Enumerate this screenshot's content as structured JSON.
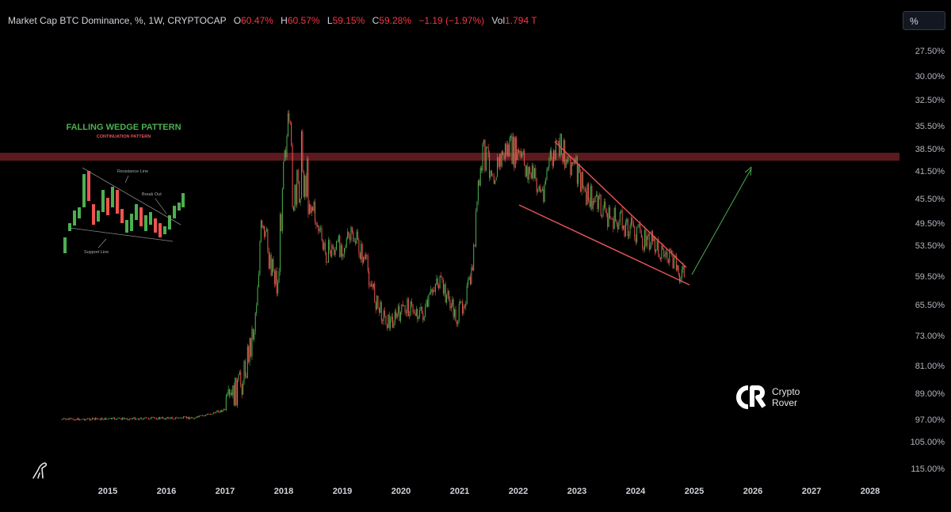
{
  "legend": {
    "symbol": "Market Cap BTC Dominance, %, 1W, CRYPTOCAP",
    "open_label": "O",
    "open": "60.47%",
    "high_label": "H",
    "high": "60.57%",
    "low_label": "L",
    "low": "59.15%",
    "close_label": "C",
    "close": "59.28%",
    "change": "−1.19 (−1.97%)",
    "vol_label": "Vol",
    "vol": "1.794 T"
  },
  "scale_button": "%",
  "brand": {
    "line1": "Crypto",
    "line2": "Rover"
  },
  "colors": {
    "up": "#4caf50",
    "down": "#ef5350",
    "band": "#5c1a1e",
    "accent": "#f23645"
  },
  "chart_data": {
    "type": "candlestick",
    "title": "Market Cap BTC Dominance, %, 1W, CRYPTOCAP",
    "x_axis": {
      "ticks": [
        "2015",
        "2016",
        "2017",
        "2018",
        "2019",
        "2020",
        "2021",
        "2022",
        "2023",
        "2024",
        "2025",
        "2026",
        "2027",
        "2028"
      ]
    },
    "y_axis": {
      "side": "right",
      "inverted": true,
      "ticks": [
        "27.50%",
        "30.00%",
        "32.50%",
        "35.50%",
        "38.50%",
        "41.50%",
        "45.50%",
        "49.50%",
        "53.50%",
        "59.50%",
        "65.50%",
        "73.00%",
        "81.00%",
        "89.00%",
        "97.00%",
        "105.00%",
        "115.00%"
      ]
    },
    "series_path": [
      {
        "t": 2014.3,
        "v": 97.0
      },
      {
        "t": 2016.5,
        "v": 96.5
      },
      {
        "t": 2017.0,
        "v": 94.0
      },
      {
        "t": 2017.3,
        "v": 85.0
      },
      {
        "t": 2017.5,
        "v": 70.0
      },
      {
        "t": 2017.6,
        "v": 52.0
      },
      {
        "t": 2017.8,
        "v": 56.0
      },
      {
        "t": 2017.9,
        "v": 62.0
      },
      {
        "t": 2018.0,
        "v": 35.5
      },
      {
        "t": 2018.1,
        "v": 38.5
      },
      {
        "t": 2018.2,
        "v": 48.0
      },
      {
        "t": 2018.3,
        "v": 40.0
      },
      {
        "t": 2018.5,
        "v": 47.0
      },
      {
        "t": 2018.7,
        "v": 55.0
      },
      {
        "t": 2019.0,
        "v": 53.5
      },
      {
        "t": 2019.2,
        "v": 52.0
      },
      {
        "t": 2019.4,
        "v": 57.0
      },
      {
        "t": 2019.6,
        "v": 66.0
      },
      {
        "t": 2019.8,
        "v": 70.0
      },
      {
        "t": 2020.1,
        "v": 66.0
      },
      {
        "t": 2020.4,
        "v": 68.0
      },
      {
        "t": 2020.6,
        "v": 60.0
      },
      {
        "t": 2020.8,
        "v": 64.0
      },
      {
        "t": 2020.95,
        "v": 69.0
      },
      {
        "t": 2021.2,
        "v": 60.0
      },
      {
        "t": 2021.3,
        "v": 46.0
      },
      {
        "t": 2021.4,
        "v": 39.0
      },
      {
        "t": 2021.6,
        "v": 41.5
      },
      {
        "t": 2021.8,
        "v": 38.5
      },
      {
        "t": 2022.0,
        "v": 39.5
      },
      {
        "t": 2022.3,
        "v": 43.0
      },
      {
        "t": 2022.4,
        "v": 45.0
      },
      {
        "t": 2022.5,
        "v": 41.0
      },
      {
        "t": 2022.7,
        "v": 38.5
      },
      {
        "t": 2022.9,
        "v": 40.0
      },
      {
        "t": 2023.1,
        "v": 44.0
      },
      {
        "t": 2023.3,
        "v": 46.0
      },
      {
        "t": 2023.6,
        "v": 49.0
      },
      {
        "t": 2023.9,
        "v": 50.0
      },
      {
        "t": 2024.1,
        "v": 52.0
      },
      {
        "t": 2024.4,
        "v": 54.0
      },
      {
        "t": 2024.6,
        "v": 56.5
      },
      {
        "t": 2024.8,
        "v": 59.3
      }
    ],
    "resistance_zone": "38.50%",
    "wedge": {
      "upper": [
        {
          "t": 2022.6,
          "v": 37.0
        },
        {
          "t": 2024.95,
          "v": 59.5
        }
      ],
      "lower": [
        {
          "t": 2022.0,
          "v": 44.0
        },
        {
          "t": 2024.95,
          "v": 62.5
        }
      ]
    },
    "projection_arrow": [
      {
        "t": 2025.0,
        "v": 58.0
      },
      {
        "t": 2026.0,
        "v": 40.0
      }
    ]
  },
  "inset": {
    "title": "FALLING WEDGE PATTERN",
    "subtitle": "CONTINUATION PATTERN",
    "resistance": "Resistance Line",
    "breakout": "Break Out",
    "support": "Support Line"
  }
}
